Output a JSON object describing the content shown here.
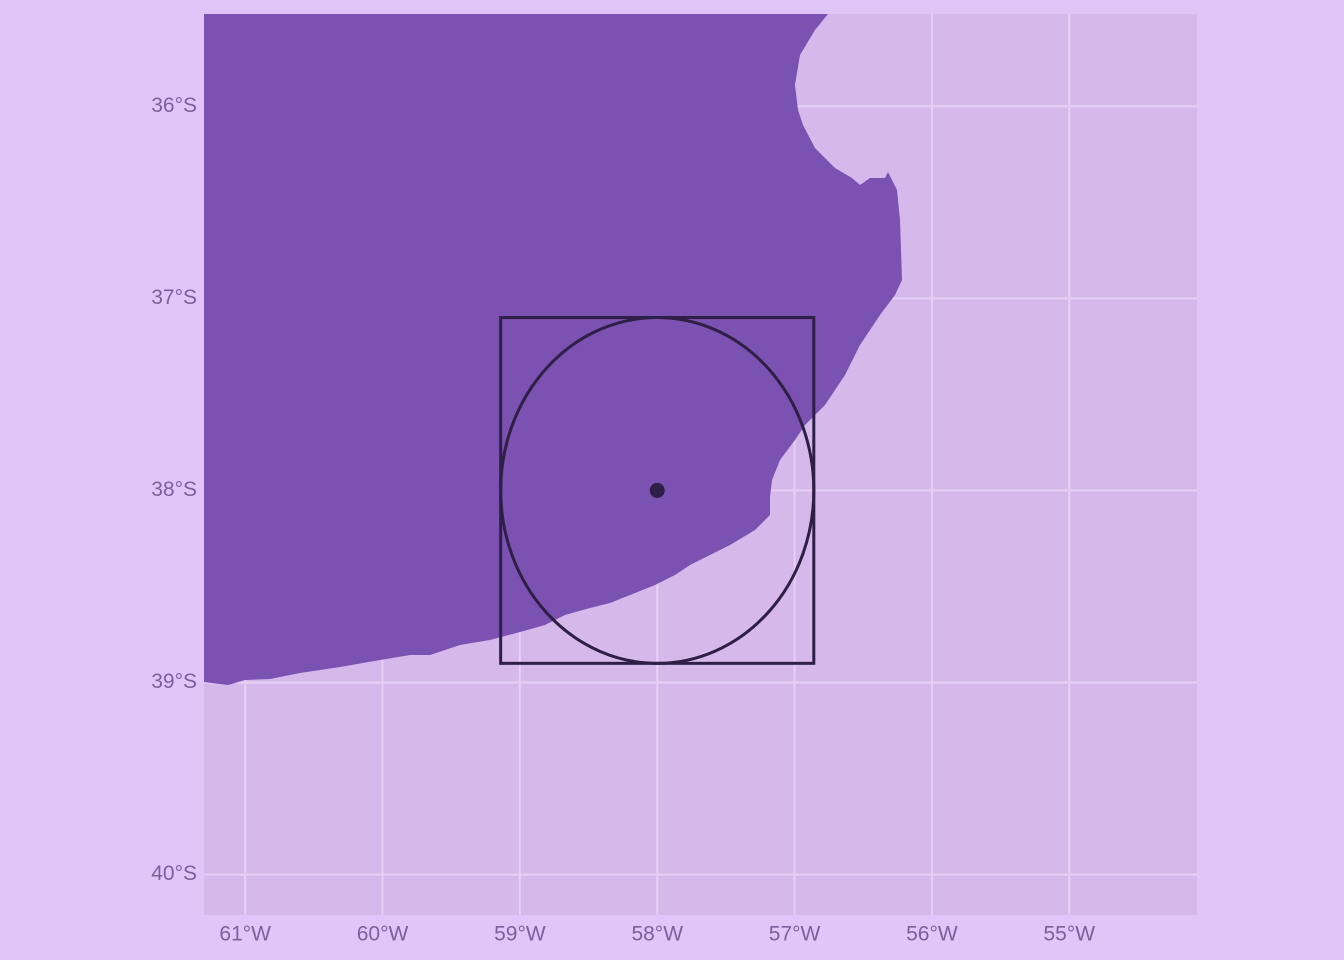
{
  "chart_data": {
    "type": "map",
    "xlim": [
      -61.3,
      -54.07
    ],
    "ylim": [
      -40.21,
      -35.52
    ],
    "xticks": [
      {
        "value": -61,
        "label": "61°W"
      },
      {
        "value": -60,
        "label": "60°W"
      },
      {
        "value": -59,
        "label": "59°W"
      },
      {
        "value": -58,
        "label": "58°W"
      },
      {
        "value": -57,
        "label": "57°W"
      },
      {
        "value": -56,
        "label": "56°W"
      },
      {
        "value": -55,
        "label": "55°W"
      }
    ],
    "yticks": [
      {
        "value": -36,
        "label": "36°S"
      },
      {
        "value": -37,
        "label": "37°S"
      },
      {
        "value": -38,
        "label": "38°S"
      },
      {
        "value": -39,
        "label": "39°S"
      },
      {
        "value": -40,
        "label": "40°S"
      }
    ],
    "grid": true,
    "point": {
      "x": -58,
      "y": -38,
      "color": "#2d1f45"
    },
    "circle": {
      "x": -58,
      "y": -38,
      "radius_x": 1.14,
      "radius_y": 0.9,
      "color": "#2d1f45"
    },
    "box": {
      "xmin": -59.14,
      "xmax": -56.86,
      "ymin": -38.9,
      "ymax": -37.1,
      "color": "#2d1f45"
    }
  }
}
